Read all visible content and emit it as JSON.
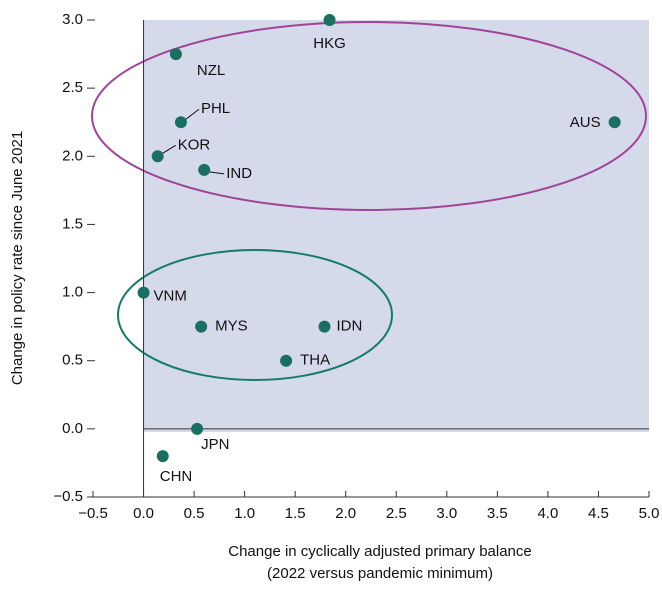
{
  "chart_data": {
    "type": "scatter",
    "xlabel": [
      "Change in cyclically adjusted primary balance",
      "(2022 versus pandemic minimum)"
    ],
    "ylabel": "Change in policy rate since June 2021",
    "labels": [
      "HKG",
      "NZL",
      "PHL",
      "KOR",
      "IND",
      "AUS",
      "VNM",
      "MYS",
      "IDN",
      "THA",
      "JPN",
      "CHN"
    ],
    "x": [
      1.84,
      0.32,
      0.37,
      0.14,
      0.6,
      4.66,
      0.0,
      0.57,
      1.79,
      1.41,
      0.53,
      0.19
    ],
    "values": [
      3.0,
      2.75,
      2.25,
      2.0,
      1.9,
      2.25,
      1.0,
      0.75,
      0.75,
      0.5,
      0.0,
      -0.2
    ],
    "color": "#1b6f60",
    "xlim": [
      -0.5,
      5.0
    ],
    "xticks": [
      {
        "value": -0.5,
        "label": "−0.5"
      },
      {
        "value": 0,
        "label": "0.0"
      },
      0.5,
      {
        "value": 1,
        "label": "1.0"
      },
      1.5,
      {
        "value": 2,
        "label": "2.0"
      },
      2.5,
      {
        "value": 3,
        "label": "3.0"
      },
      3.5,
      {
        "value": 4,
        "label": "4.0"
      },
      4.5,
      {
        "value": 5,
        "label": "5.0"
      }
    ],
    "ylim": [
      -0.5,
      3.0
    ],
    "yticks": [
      {
        "value": -0.5,
        "label": "−0.5"
      },
      {
        "value": 0,
        "label": "0.0"
      },
      0.5,
      {
        "value": 1,
        "label": "1.0"
      },
      1.5,
      {
        "value": 2,
        "label": "2.0"
      },
      2.5,
      {
        "value": 3,
        "label": "3.0"
      }
    ]
  }
}
